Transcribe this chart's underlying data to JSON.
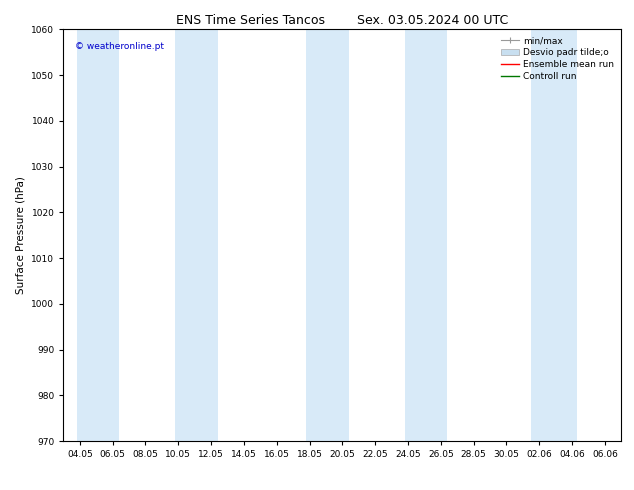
{
  "title_left": "ENS Time Series Tancos",
  "title_right": "Sex. 03.05.2024 00 UTC",
  "ylabel": "Surface Pressure (hPa)",
  "ylim": [
    970,
    1060
  ],
  "yticks": [
    970,
    980,
    990,
    1000,
    1010,
    1020,
    1030,
    1040,
    1050,
    1060
  ],
  "xtick_labels": [
    "04.05",
    "06.05",
    "08.05",
    "10.05",
    "12.05",
    "14.05",
    "16.05",
    "18.05",
    "20.05",
    "22.05",
    "24.05",
    "26.05",
    "28.05",
    "30.05",
    "02.06",
    "04.06",
    "06.06"
  ],
  "watermark": "© weatheronline.pt",
  "watermark_color": "#0000cc",
  "band_color": "#d8eaf8",
  "legend_labels": [
    "min/max",
    "Desvio padr tilde;o",
    "Ensemble mean run",
    "Controll run"
  ],
  "legend_colors": [
    "#999999",
    "#c8dff0",
    "#ff0000",
    "#007700"
  ],
  "bg_color": "#ffffff",
  "spine_color": "#000000",
  "title_fontsize": 9,
  "tick_fontsize": 6.5,
  "ylabel_fontsize": 7.5,
  "legend_fontsize": 6.5,
  "watermark_fontsize": 6.5
}
